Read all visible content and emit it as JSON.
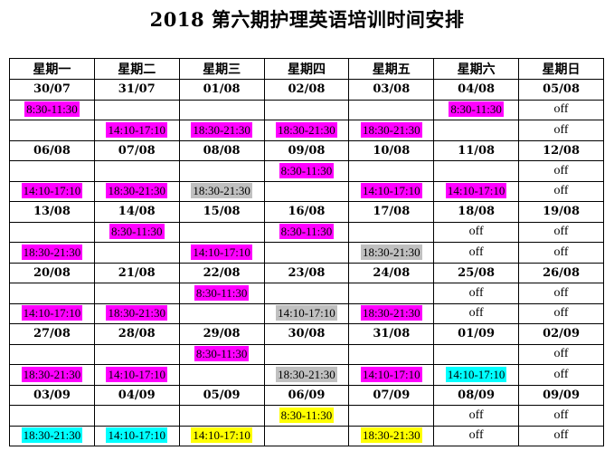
{
  "title": "2018 第六期护理英语培训时间安排",
  "headers": [
    "星期一",
    "星期二",
    "星期三",
    "星期四",
    "星期五",
    "星期六",
    "星期日"
  ],
  "weeks": [
    {
      "dates": [
        "30/07",
        "31/07",
        "01/08",
        "02/08",
        "03/08",
        "04/08",
        "05/08"
      ],
      "am": [
        {
          "text": "8:30-11:30",
          "color": "magenta"
        },
        null,
        null,
        null,
        null,
        {
          "text": "8:30-11:30",
          "color": "magenta"
        },
        {
          "text": "off",
          "color": ""
        }
      ],
      "pm": [
        null,
        {
          "text": "14:10-17:10",
          "color": "magenta"
        },
        {
          "text": "18:30-21:30",
          "color": "magenta"
        },
        {
          "text": "18:30-21:30",
          "color": "magenta"
        },
        {
          "text": "18:30-21:30",
          "color": "magenta"
        },
        null,
        {
          "text": "off",
          "color": ""
        }
      ]
    },
    {
      "dates": [
        "06/08",
        "07/08",
        "08/08",
        "09/08",
        "10/08",
        "11/08",
        "12/08"
      ],
      "am": [
        null,
        null,
        null,
        {
          "text": "8:30-11:30",
          "color": "magenta"
        },
        null,
        null,
        {
          "text": "off",
          "color": ""
        }
      ],
      "pm": [
        {
          "text": "14:10-17:10",
          "color": "magenta"
        },
        {
          "text": "18:30-21:30",
          "color": "magenta"
        },
        {
          "text": "18:30-21:30",
          "color": "gray"
        },
        null,
        {
          "text": "14:10-17:10",
          "color": "magenta"
        },
        {
          "text": "14:10-17:10",
          "color": "magenta"
        },
        {
          "text": "off",
          "color": ""
        }
      ]
    },
    {
      "dates": [
        "13/08",
        "14/08",
        "15/08",
        "16/08",
        "17/08",
        "18/08",
        "19/08"
      ],
      "am": [
        null,
        {
          "text": "8:30-11:30",
          "color": "magenta"
        },
        null,
        {
          "text": "8:30-11:30",
          "color": "magenta"
        },
        null,
        {
          "text": "off",
          "color": ""
        },
        {
          "text": "off",
          "color": ""
        }
      ],
      "pm": [
        {
          "text": "18:30-21:30",
          "color": "magenta"
        },
        null,
        {
          "text": "14:10-17:10",
          "color": "magenta"
        },
        null,
        {
          "text": "18:30-21:30",
          "color": "gray"
        },
        {
          "text": "off",
          "color": ""
        },
        {
          "text": "off",
          "color": ""
        }
      ]
    },
    {
      "dates": [
        "20/08",
        "21/08",
        "22/08",
        "23/08",
        "24/08",
        "25/08",
        "26/08"
      ],
      "am": [
        null,
        null,
        {
          "text": "8:30-11:30",
          "color": "magenta"
        },
        null,
        null,
        {
          "text": "off",
          "color": ""
        },
        {
          "text": "off",
          "color": ""
        }
      ],
      "pm": [
        {
          "text": "14:10-17:10",
          "color": "magenta"
        },
        {
          "text": "18:30-21:30",
          "color": "magenta"
        },
        null,
        {
          "text": "14:10-17:10",
          "color": "gray"
        },
        {
          "text": "18:30-21:30",
          "color": "magenta"
        },
        {
          "text": "off",
          "color": ""
        },
        {
          "text": "off",
          "color": ""
        }
      ]
    },
    {
      "dates": [
        "27/08",
        "28/08",
        "29/08",
        "30/08",
        "31/08",
        "01/09",
        "02/09"
      ],
      "am": [
        null,
        null,
        {
          "text": "8:30-11:30",
          "color": "magenta"
        },
        null,
        null,
        null,
        {
          "text": "off",
          "color": ""
        }
      ],
      "pm": [
        {
          "text": "18:30-21:30",
          "color": "magenta"
        },
        {
          "text": "14:10-17:10",
          "color": "magenta"
        },
        null,
        {
          "text": "18:30-21:30",
          "color": "gray"
        },
        {
          "text": "14:10-17:10",
          "color": "magenta"
        },
        {
          "text": "14:10-17:10",
          "color": "cyan"
        },
        {
          "text": "off",
          "color": ""
        }
      ]
    },
    {
      "dates": [
        "03/09",
        "04/09",
        "05/09",
        "06/09",
        "07/09",
        "08/09",
        "09/09"
      ],
      "am": [
        null,
        null,
        null,
        {
          "text": "8:30-11:30",
          "color": "yellow"
        },
        null,
        {
          "text": "off",
          "color": ""
        },
        {
          "text": "off",
          "color": ""
        }
      ],
      "pm": [
        {
          "text": "18:30-21:30",
          "color": "cyan"
        },
        {
          "text": "14:10-17:10",
          "color": "cyan"
        },
        {
          "text": "14:10-17:10",
          "color": "yellow"
        },
        null,
        {
          "text": "18:30-21:30",
          "color": "yellow"
        },
        {
          "text": "off",
          "color": ""
        },
        {
          "text": "off",
          "color": ""
        }
      ]
    }
  ],
  "colors": {
    "magenta": "#ff00ff",
    "gray": "#c0c0c0",
    "cyan": "#00ffff",
    "yellow": "#ffff00"
  }
}
